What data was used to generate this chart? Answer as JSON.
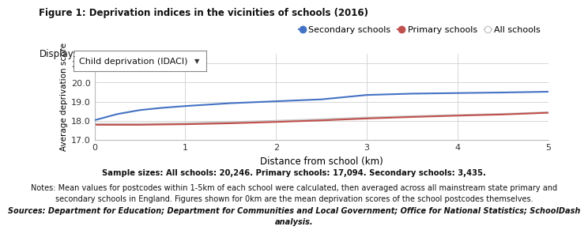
{
  "title": "Figure 1: Deprivation indices in the vicinities of schools (2016)",
  "display_label": "Display:",
  "display_value": "Child deprivation (IDACI)",
  "xlabel": "Distance from school (km)",
  "ylabel": "Average deprivation score",
  "xlim": [
    0,
    5
  ],
  "ylim": [
    17.0,
    21.5
  ],
  "yticks": [
    17.0,
    18.0,
    19.0,
    20.0,
    21.0
  ],
  "xticks": [
    0,
    1,
    2,
    3,
    4,
    5
  ],
  "secondary_x": [
    0,
    0.25,
    0.5,
    0.75,
    1.0,
    1.5,
    2.0,
    2.5,
    3.0,
    3.5,
    4.0,
    4.5,
    5.0
  ],
  "secondary_y": [
    18.03,
    18.35,
    18.56,
    18.68,
    18.77,
    18.92,
    19.02,
    19.12,
    19.35,
    19.42,
    19.45,
    19.48,
    19.52
  ],
  "primary_x": [
    0,
    0.5,
    1.0,
    1.5,
    2.0,
    2.5,
    3.0,
    3.5,
    4.0,
    4.5,
    5.0
  ],
  "primary_y": [
    17.79,
    17.79,
    17.82,
    17.87,
    17.94,
    18.02,
    18.12,
    18.2,
    18.27,
    18.33,
    18.42
  ],
  "all_x": [
    0,
    0.5,
    1.0,
    1.5,
    2.0,
    2.5,
    3.0,
    3.5,
    4.0,
    4.5,
    5.0
  ],
  "all_y": [
    17.84,
    17.84,
    17.87,
    17.93,
    18.0,
    18.08,
    18.17,
    18.24,
    18.3,
    18.36,
    18.44
  ],
  "secondary_color": "#4472C4",
  "primary_color": "#C0504D",
  "all_color": "#C8C8C8",
  "legend_labels": [
    "Secondary schools",
    "Primary schools",
    "All schools"
  ],
  "sample_text": "Sample sizes: All schools: 20,246. Primary schools: 17,094. Secondary schools: 3,435.",
  "notes_line1": "Notes: Mean values for postcodes within 1-5km of each school were calculated, then averaged across all mainstream state primary and",
  "notes_line2": "secondary schools in England. Figures shown for 0km are the mean deprivation scores of the school postcodes themselves.",
  "sources_line1": "Sources: Department for Education; Department for Communities and Local Government; Office for National Statistics; SchoolDash",
  "sources_line2": "analysis.",
  "background_color": "#ffffff",
  "grid_color": "#d0d0d0"
}
